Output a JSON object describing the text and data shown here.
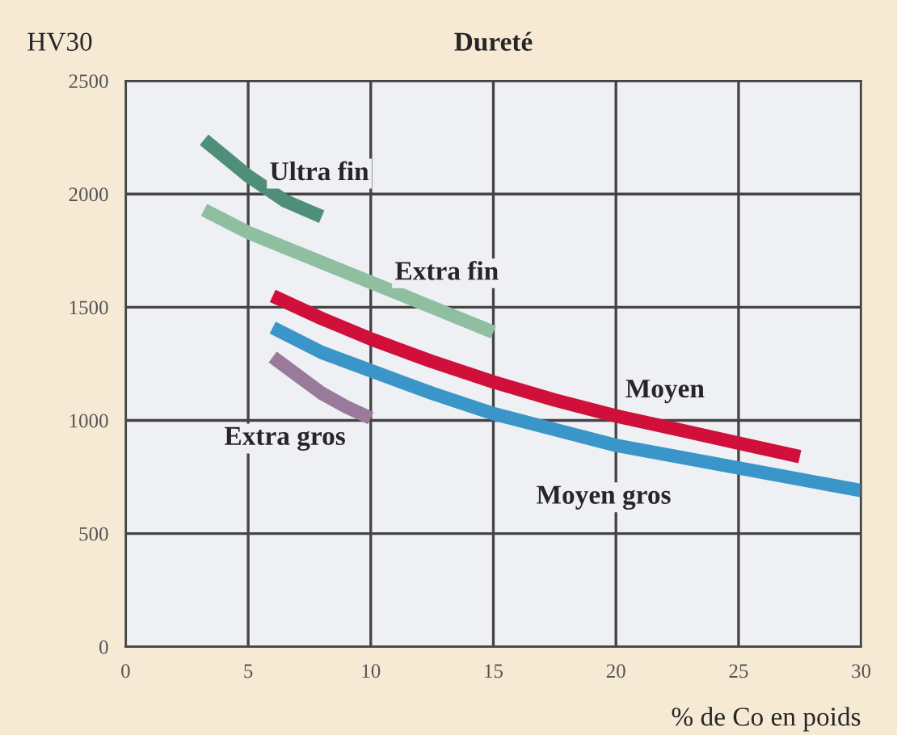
{
  "chart_data": {
    "type": "line",
    "title": "Dureté",
    "xlabel": "% de Co en poids",
    "ylabel": "HV30",
    "xlim": [
      0,
      30
    ],
    "xticks": [
      0,
      5,
      10,
      15,
      20,
      25,
      30
    ],
    "ylim": [
      0,
      2500
    ],
    "yticks": [
      0,
      500,
      1000,
      1500,
      2000,
      2500
    ],
    "grid": true,
    "legend": false,
    "marker": "none",
    "line_style": "solid",
    "series": [
      {
        "name": "Ultra fin",
        "color": "#4f8f7a",
        "x": [
          3.2,
          5,
          6.5,
          8
        ],
        "values": [
          2240,
          2080,
          1970,
          1900
        ]
      },
      {
        "name": "Extra fin",
        "color": "#8fbfa0",
        "x": [
          3.2,
          5,
          7.5,
          10,
          12.5,
          15
        ],
        "values": [
          1930,
          1830,
          1720,
          1610,
          1500,
          1390
        ]
      },
      {
        "name": "Moyen",
        "color": "#d0103a",
        "x": [
          6,
          8,
          10,
          12.5,
          15,
          17.5,
          20,
          22.5,
          25,
          27.5
        ],
        "values": [
          1550,
          1450,
          1360,
          1260,
          1170,
          1090,
          1020,
          960,
          900,
          840
        ]
      },
      {
        "name": "Moyen gros",
        "color": "#3a96c8",
        "x": [
          6,
          8,
          10,
          12.5,
          15,
          17.5,
          20,
          22.5,
          25,
          27.5,
          30
        ],
        "values": [
          1410,
          1300,
          1220,
          1120,
          1030,
          960,
          890,
          840,
          790,
          740,
          690
        ]
      },
      {
        "name": "Extra gros",
        "color": "#9a7a9a",
        "x": [
          6,
          7,
          8,
          9,
          10
        ],
        "values": [
          1280,
          1200,
          1120,
          1060,
          1010
        ]
      }
    ]
  }
}
